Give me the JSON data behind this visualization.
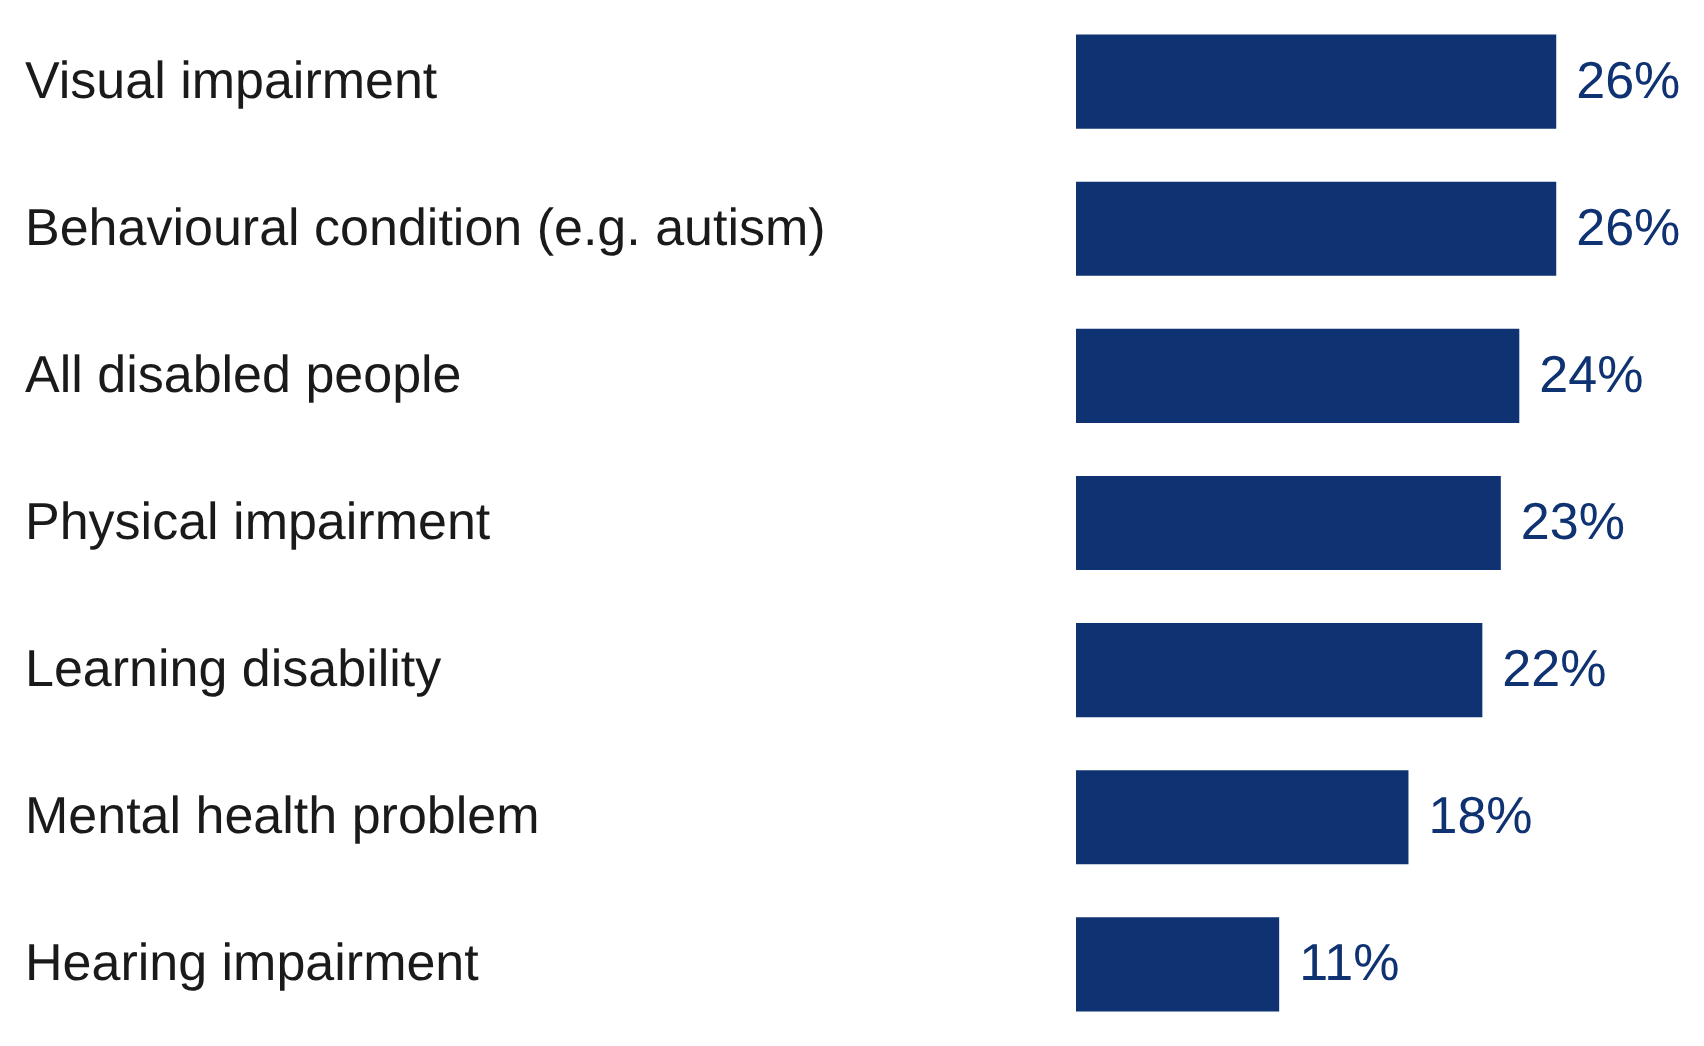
{
  "chart_data": {
    "type": "bar",
    "orientation": "horizontal",
    "categories": [
      "Visual impairment",
      "Behavioural condition (e.g. autism)",
      "All disabled people",
      "Physical impairment",
      "Learning disability",
      "Mental health problem",
      "Hearing impairment"
    ],
    "values": [
      26,
      26,
      24,
      23,
      22,
      18,
      11
    ],
    "value_labels": [
      "26%",
      "26%",
      "24%",
      "23%",
      "22%",
      "18%",
      "11%"
    ],
    "color": "#0f3272",
    "xlim": [
      0,
      34
    ],
    "tick_labels": "y"
  }
}
